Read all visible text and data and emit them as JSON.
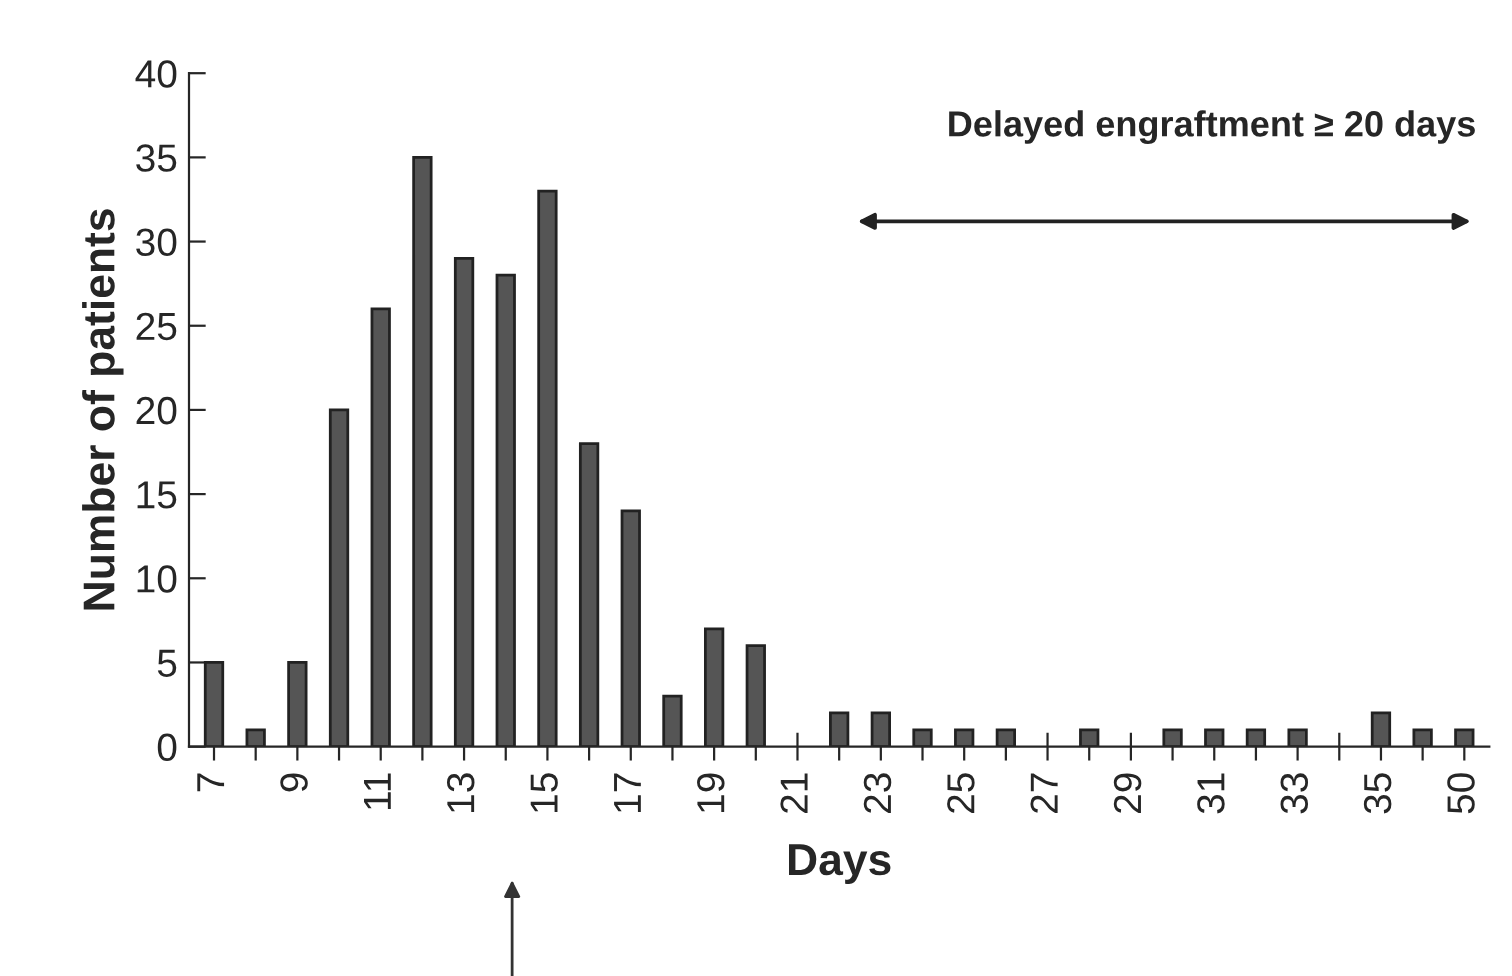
{
  "chart_data": {
    "type": "bar",
    "xlabel": "Days",
    "ylabel": "Number of patients",
    "categories": [
      "7",
      null,
      "9",
      null,
      "11",
      null,
      "13",
      null,
      "15",
      null,
      "17",
      null,
      "19",
      null,
      "21",
      null,
      "23",
      null,
      "25",
      null,
      "27",
      null,
      "29",
      null,
      "31",
      null,
      "33",
      null,
      "35",
      null,
      "50"
    ],
    "values": [
      5,
      1,
      5,
      20,
      26,
      35,
      29,
      28,
      33,
      18,
      14,
      3,
      7,
      6,
      0,
      2,
      2,
      1,
      1,
      1,
      0,
      1,
      0,
      1,
      1,
      1,
      1,
      0,
      2,
      1,
      1
    ],
    "color": "#555555",
    "ylim": [
      0,
      40
    ],
    "yticks": [
      0,
      5,
      10,
      15,
      20,
      25,
      30,
      35,
      40
    ],
    "annotations": [
      "Delayed engraftment ≥ 20 days"
    ]
  }
}
